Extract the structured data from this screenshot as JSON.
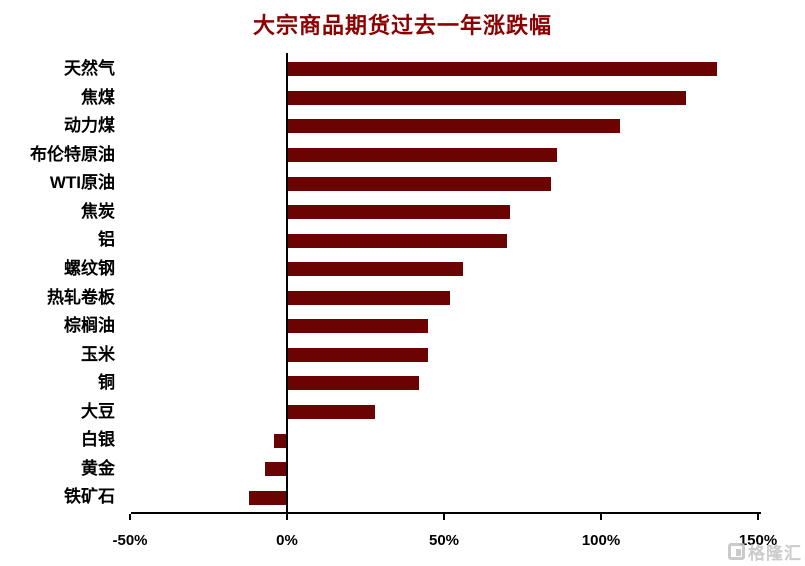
{
  "title": "大宗商品期货过去一年涨跌幅",
  "watermark": "格隆汇",
  "colors": {
    "bar": "#6B0303",
    "title": "#8B0000",
    "axis": "#000000",
    "label": "#000000",
    "watermark": "#c6c6c6"
  },
  "chart_data": {
    "type": "bar",
    "orientation": "horizontal",
    "title": "大宗商品期货过去一年涨跌幅",
    "categories": [
      "天然气",
      "焦煤",
      "动力煤",
      "布伦特原油",
      "WTI原油",
      "焦炭",
      "铝",
      "螺纹钢",
      "热轧卷板",
      "棕榈油",
      "玉米",
      "铜",
      "大豆",
      "白银",
      "黄金",
      "铁矿石"
    ],
    "values": [
      137,
      127,
      106,
      86,
      84,
      71,
      70,
      56,
      52,
      45,
      45,
      42,
      28,
      -4,
      -7,
      -12
    ],
    "unit": "%",
    "xlabel": "",
    "ylabel": "",
    "xlim": [
      -50,
      150
    ],
    "x_tick_values": [
      -50,
      0,
      50,
      100,
      150
    ],
    "x_tick_labels": [
      "-50%",
      "0%",
      "50%",
      "100%",
      "150%"
    ],
    "grid": false,
    "legend": null
  }
}
